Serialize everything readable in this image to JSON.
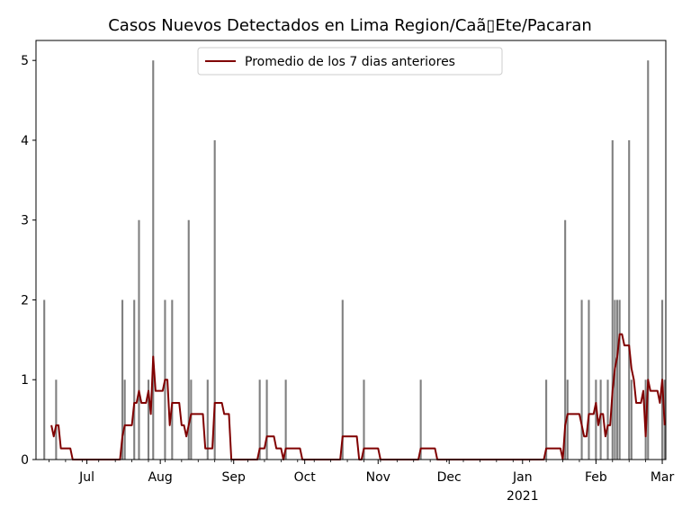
{
  "chart_data": {
    "type": "bar",
    "title": "Casos Nuevos Detectados en Lima Region/Caã\u0000Ete/Pacaran",
    "title_display": "Casos Nuevos Detectados en Lima Region/Caã▯Ete/Pacaran",
    "xlabel": "",
    "ylabel": "",
    "x_range": [
      "2020-06-10",
      "2021-03-02"
    ],
    "ylim": [
      0,
      5.25
    ],
    "y_ticks": [
      0,
      1,
      2,
      3,
      4,
      5
    ],
    "x_tick_labels": [
      {
        "date": "2020-07-01",
        "label": "Jul",
        "sub": ""
      },
      {
        "date": "2020-08-01",
        "label": "Aug",
        "sub": ""
      },
      {
        "date": "2020-09-01",
        "label": "Sep",
        "sub": ""
      },
      {
        "date": "2020-10-01",
        "label": "Oct",
        "sub": ""
      },
      {
        "date": "2020-11-01",
        "label": "Nov",
        "sub": ""
      },
      {
        "date": "2020-12-01",
        "label": "Dec",
        "sub": ""
      },
      {
        "date": "2021-01-01",
        "label": "Jan",
        "sub": "2021"
      },
      {
        "date": "2021-02-01",
        "label": "Feb",
        "sub": ""
      },
      {
        "date": "2021-03-01",
        "label": "Mar",
        "sub": ""
      }
    ],
    "bar_color": "#808080",
    "line_color": "#800000",
    "legend": {
      "position": "top-center",
      "entries": [
        "Promedio de los 7 dias anteriores"
      ]
    },
    "grid": false,
    "series": [
      {
        "type": "bar",
        "points": [
          [
            "2020-06-13",
            2
          ],
          [
            "2020-06-18",
            1
          ],
          [
            "2020-07-16",
            2
          ],
          [
            "2020-07-17",
            1
          ],
          [
            "2020-07-21",
            2
          ],
          [
            "2020-07-23",
            3
          ],
          [
            "2020-07-27",
            1
          ],
          [
            "2020-07-29",
            5
          ],
          [
            "2020-08-03",
            2
          ],
          [
            "2020-08-06",
            2
          ],
          [
            "2020-08-13",
            3
          ],
          [
            "2020-08-14",
            1
          ],
          [
            "2020-08-21",
            1
          ],
          [
            "2020-08-24",
            4
          ],
          [
            "2020-09-12",
            1
          ],
          [
            "2020-09-15",
            1
          ],
          [
            "2020-09-23",
            1
          ],
          [
            "2020-10-17",
            2
          ],
          [
            "2020-10-26",
            1
          ],
          [
            "2020-11-19",
            1
          ],
          [
            "2021-01-11",
            1
          ],
          [
            "2021-01-19",
            3
          ],
          [
            "2021-01-20",
            1
          ],
          [
            "2021-01-26",
            2
          ],
          [
            "2021-01-29",
            2
          ],
          [
            "2021-02-01",
            1
          ],
          [
            "2021-02-03",
            1
          ],
          [
            "2021-02-06",
            1
          ],
          [
            "2021-02-08",
            4
          ],
          [
            "2021-02-09",
            2
          ],
          [
            "2021-02-10",
            2
          ],
          [
            "2021-02-11",
            2
          ],
          [
            "2021-02-15",
            4
          ],
          [
            "2021-02-16",
            1
          ],
          [
            "2021-02-22",
            1
          ],
          [
            "2021-02-23",
            5
          ],
          [
            "2021-03-01",
            2
          ],
          [
            "2021-03-02",
            1
          ]
        ]
      },
      {
        "type": "line",
        "name": "Promedio de los 7 dias anteriores",
        "points": [
          [
            "2020-06-16",
            0.43
          ],
          [
            "2020-06-17",
            0.29
          ],
          [
            "2020-06-18",
            0.43
          ],
          [
            "2020-06-19",
            0.43
          ],
          [
            "2020-06-20",
            0.14
          ],
          [
            "2020-06-24",
            0.14
          ],
          [
            "2020-06-25",
            0.0
          ],
          [
            "2020-07-15",
            0.0
          ],
          [
            "2020-07-16",
            0.29
          ],
          [
            "2020-07-17",
            0.43
          ],
          [
            "2020-07-20",
            0.43
          ],
          [
            "2020-07-21",
            0.71
          ],
          [
            "2020-07-22",
            0.71
          ],
          [
            "2020-07-23",
            0.86
          ],
          [
            "2020-07-24",
            0.71
          ],
          [
            "2020-07-26",
            0.71
          ],
          [
            "2020-07-27",
            0.86
          ],
          [
            "2020-07-28",
            0.57
          ],
          [
            "2020-07-29",
            1.29
          ],
          [
            "2020-07-30",
            0.86
          ],
          [
            "2020-08-02",
            0.86
          ],
          [
            "2020-08-03",
            1.0
          ],
          [
            "2020-08-04",
            1.0
          ],
          [
            "2020-08-05",
            0.43
          ],
          [
            "2020-08-06",
            0.71
          ],
          [
            "2020-08-09",
            0.71
          ],
          [
            "2020-08-10",
            0.43
          ],
          [
            "2020-08-11",
            0.43
          ],
          [
            "2020-08-12",
            0.29
          ],
          [
            "2020-08-13",
            0.43
          ],
          [
            "2020-08-14",
            0.57
          ],
          [
            "2020-08-19",
            0.57
          ],
          [
            "2020-08-20",
            0.14
          ],
          [
            "2020-08-23",
            0.14
          ],
          [
            "2020-08-24",
            0.71
          ],
          [
            "2020-08-27",
            0.71
          ],
          [
            "2020-08-28",
            0.57
          ],
          [
            "2020-08-30",
            0.57
          ],
          [
            "2020-08-31",
            0.0
          ],
          [
            "2020-09-11",
            0.0
          ],
          [
            "2020-09-12",
            0.14
          ],
          [
            "2020-09-14",
            0.14
          ],
          [
            "2020-09-15",
            0.29
          ],
          [
            "2020-09-18",
            0.29
          ],
          [
            "2020-09-19",
            0.14
          ],
          [
            "2020-09-21",
            0.14
          ],
          [
            "2020-09-22",
            0.0
          ],
          [
            "2020-09-23",
            0.14
          ],
          [
            "2020-09-29",
            0.14
          ],
          [
            "2020-09-30",
            0.0
          ],
          [
            "2020-10-16",
            0.0
          ],
          [
            "2020-10-17",
            0.29
          ],
          [
            "2020-10-23",
            0.29
          ],
          [
            "2020-10-24",
            0.0
          ],
          [
            "2020-10-25",
            0.0
          ],
          [
            "2020-10-26",
            0.14
          ],
          [
            "2020-11-01",
            0.14
          ],
          [
            "2020-11-02",
            0.0
          ],
          [
            "2020-11-18",
            0.0
          ],
          [
            "2020-11-19",
            0.14
          ],
          [
            "2020-11-25",
            0.14
          ],
          [
            "2020-11-26",
            0.0
          ],
          [
            "2021-01-10",
            0.0
          ],
          [
            "2021-01-11",
            0.14
          ],
          [
            "2021-01-17",
            0.14
          ],
          [
            "2021-01-18",
            0.0
          ],
          [
            "2021-01-19",
            0.43
          ],
          [
            "2021-01-20",
            0.57
          ],
          [
            "2021-01-25",
            0.57
          ],
          [
            "2021-01-26",
            0.43
          ],
          [
            "2021-01-27",
            0.29
          ],
          [
            "2021-01-28",
            0.29
          ],
          [
            "2021-01-29",
            0.57
          ],
          [
            "2021-01-31",
            0.57
          ],
          [
            "2021-02-01",
            0.71
          ],
          [
            "2021-02-02",
            0.43
          ],
          [
            "2021-02-03",
            0.57
          ],
          [
            "2021-02-04",
            0.57
          ],
          [
            "2021-02-05",
            0.29
          ],
          [
            "2021-02-06",
            0.43
          ],
          [
            "2021-02-07",
            0.43
          ],
          [
            "2021-02-08",
            0.86
          ],
          [
            "2021-02-09",
            1.14
          ],
          [
            "2021-02-10",
            1.29
          ],
          [
            "2021-02-11",
            1.57
          ],
          [
            "2021-02-12",
            1.57
          ],
          [
            "2021-02-13",
            1.43
          ],
          [
            "2021-02-15",
            1.43
          ],
          [
            "2021-02-16",
            1.14
          ],
          [
            "2021-02-17",
            1.0
          ],
          [
            "2021-02-18",
            0.71
          ],
          [
            "2021-02-20",
            0.71
          ],
          [
            "2021-02-21",
            0.86
          ],
          [
            "2021-02-22",
            0.29
          ],
          [
            "2021-02-23",
            1.0
          ],
          [
            "2021-02-24",
            0.86
          ],
          [
            "2021-02-27",
            0.86
          ],
          [
            "2021-02-28",
            0.71
          ],
          [
            "2021-03-01",
            1.0
          ],
          [
            "2021-03-02",
            0.43
          ]
        ]
      }
    ]
  }
}
